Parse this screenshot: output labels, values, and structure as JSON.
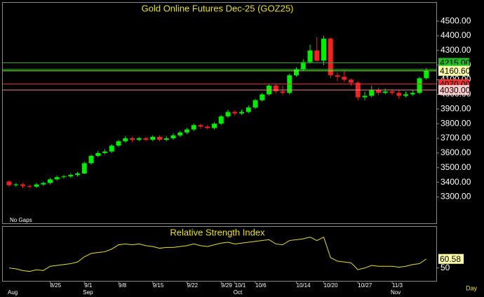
{
  "chart_data": [
    {
      "type": "candlestick",
      "title": "Gold Online Futures Dec-25 (GOZ25)",
      "note": "No Gaps",
      "categories": [
        null,
        null,
        null,
        null,
        null,
        null,
        "8/25",
        null,
        null,
        null,
        null,
        "9/1",
        null,
        null,
        null,
        null,
        "9/8",
        null,
        null,
        null,
        null,
        "9/15",
        null,
        null,
        null,
        null,
        "9/22",
        null,
        null,
        null,
        null,
        "9/29",
        null,
        "10/1",
        null,
        null,
        "10/6",
        null,
        null,
        null,
        null,
        null,
        "10/14",
        null,
        null,
        null,
        "10/20",
        null,
        null,
        null,
        null,
        "10/27",
        null,
        null,
        null,
        null,
        "11/3",
        null,
        null,
        null,
        null,
        null
      ],
      "month_labels": [
        "Aug",
        null,
        null,
        null,
        null,
        null,
        null,
        null,
        null,
        null,
        null,
        "Sep",
        null,
        null,
        null,
        null,
        null,
        null,
        null,
        null,
        null,
        null,
        null,
        null,
        null,
        null,
        null,
        null,
        null,
        null,
        null,
        null,
        null,
        "Oct",
        null,
        null,
        null,
        null,
        null,
        null,
        null,
        null,
        null,
        null,
        null,
        null,
        null,
        null,
        null,
        null,
        null,
        null,
        null,
        null,
        null,
        null,
        "Nov",
        null,
        null,
        null,
        null,
        null
      ],
      "open": [
        3405,
        3380,
        3385,
        3375,
        3370,
        3385,
        3395,
        3420,
        3435,
        3440,
        3450,
        3460,
        3530,
        3580,
        3600,
        3610,
        3650,
        3680,
        3700,
        3690,
        3700,
        3690,
        3710,
        3690,
        3700,
        3720,
        3740,
        3760,
        3790,
        3780,
        3770,
        3800,
        3850,
        3880,
        3870,
        3880,
        3910,
        3960,
        4000,
        4060,
        4020,
        4010,
        4130,
        4170,
        4220,
        4300,
        4230,
        4380,
        4130,
        4120,
        4100,
        4080,
        3980,
        3990,
        4030,
        4010,
        4020,
        4010,
        3990,
        4000,
        4010,
        4110
      ],
      "high": [
        3415,
        3395,
        3395,
        3385,
        3395,
        3405,
        3430,
        3445,
        3450,
        3460,
        3470,
        3540,
        3590,
        3615,
        3625,
        3660,
        3690,
        3715,
        3710,
        3710,
        3710,
        3720,
        3720,
        3715,
        3735,
        3750,
        3770,
        3800,
        3800,
        3790,
        3810,
        3860,
        3895,
        3890,
        3895,
        3925,
        3970,
        4010,
        4070,
        4075,
        4060,
        4140,
        4185,
        4240,
        4340,
        4390,
        4400,
        4390,
        4150,
        4160,
        4110,
        4090,
        4020,
        4060,
        4045,
        4040,
        4035,
        4030,
        4020,
        4030,
        4120,
        4180
      ],
      "low": [
        3370,
        3370,
        3360,
        3360,
        3360,
        3375,
        3385,
        3410,
        3425,
        3430,
        3440,
        3455,
        3520,
        3570,
        3590,
        3600,
        3640,
        3670,
        3675,
        3680,
        3680,
        3680,
        3680,
        3680,
        3690,
        3710,
        3730,
        3750,
        3765,
        3760,
        3760,
        3790,
        3840,
        3855,
        3860,
        3870,
        3900,
        3950,
        3990,
        4005,
        3995,
        4000,
        4120,
        4160,
        4210,
        4220,
        4200,
        4110,
        4090,
        4085,
        4060,
        3960,
        3960,
        3980,
        3995,
        4000,
        3995,
        3970,
        3980,
        3990,
        4000,
        4100
      ],
      "close": [
        3380,
        3385,
        3375,
        3370,
        3385,
        3395,
        3420,
        3435,
        3440,
        3450,
        3460,
        3530,
        3580,
        3600,
        3610,
        3650,
        3680,
        3700,
        3690,
        3700,
        3690,
        3710,
        3690,
        3700,
        3720,
        3740,
        3760,
        3790,
        3780,
        3770,
        3800,
        3850,
        3880,
        3870,
        3880,
        3910,
        3960,
        4000,
        4060,
        4020,
        4010,
        4130,
        4170,
        4220,
        4300,
        4230,
        4380,
        4130,
        4120,
        4100,
        4080,
        3980,
        3990,
        4030,
        4010,
        4020,
        4010,
        3990,
        4000,
        4010,
        4110,
        4160.6
      ],
      "up_color": "#00ee00",
      "down_color": "#ee2222",
      "ylim": [
        3120,
        4625
      ],
      "yticks": [
        {
          "value": 3300,
          "label": "3300.00"
        },
        {
          "value": 3400,
          "label": "3400.00"
        },
        {
          "value": 3500,
          "label": "3500.00"
        },
        {
          "value": 3600,
          "label": "3600.00"
        },
        {
          "value": 3700,
          "label": "3700.00"
        },
        {
          "value": 3800,
          "label": "3800.00"
        },
        {
          "value": 3900,
          "label": "3900.00"
        },
        {
          "value": 4000,
          "label": "4000.00"
        },
        {
          "value": 4100,
          "label": "4100.00"
        },
        {
          "value": 4200,
          "label": "4200.00"
        },
        {
          "value": 4300,
          "label": "4300.00"
        },
        {
          "value": 4400,
          "label": "4400.00"
        },
        {
          "value": 4500,
          "label": "4500.00"
        }
      ],
      "levels": [
        {
          "value": 4215,
          "label": "4215.00",
          "color": "#22aa22",
          "label_bg": "#22bb22"
        },
        {
          "value": 4170,
          "label": "4170.00",
          "color": "#22cc22",
          "label_bg": "#33cc33"
        },
        {
          "value": 4160.6,
          "label": "4160.60",
          "color": "#88ee44",
          "label_bg": "#ffffaa"
        },
        {
          "value": 4070,
          "label": "4070.00",
          "color": "#ee3333",
          "label_bg": "#ee3333"
        },
        {
          "value": 4030,
          "label": "4030.00",
          "color": "#ee8888",
          "label_bg": "#ffcccc"
        }
      ]
    },
    {
      "type": "line",
      "title": "Relative Strength Index",
      "color": "#e8e020",
      "x_unit": "Day",
      "values": [
        50,
        49,
        47,
        46,
        48,
        47,
        52,
        53,
        54,
        55,
        57,
        63,
        67,
        68,
        69,
        72,
        77,
        78,
        77,
        78,
        76,
        75,
        73,
        74,
        74,
        75,
        76,
        78,
        76,
        75,
        77,
        79,
        80,
        78,
        79,
        80,
        81,
        82,
        83,
        78,
        77,
        82,
        83,
        84,
        86,
        82,
        86,
        62,
        58,
        57,
        56,
        48,
        50,
        53,
        52,
        52,
        52,
        51,
        52,
        54,
        55,
        60.58
      ],
      "ylim": [
        35,
        98
      ],
      "yticks": [
        50
      ]
    }
  ]
}
